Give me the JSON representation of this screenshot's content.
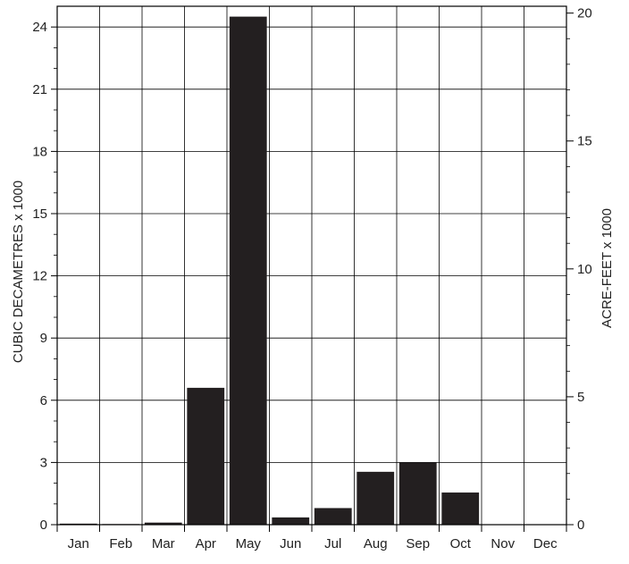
{
  "chart_data": {
    "type": "bar",
    "categories": [
      "Jan",
      "Feb",
      "Mar",
      "Apr",
      "May",
      "Jun",
      "Jul",
      "Aug",
      "Sep",
      "Oct",
      "Nov",
      "Dec"
    ],
    "values": [
      0.05,
      0.03,
      0.1,
      6.6,
      24.5,
      0.35,
      0.8,
      2.55,
      3.0,
      1.55,
      0.02,
      0.02
    ],
    "ylabel": "CUBIC DECAMETRES x 1000",
    "ylim": [
      0,
      25
    ],
    "y_ticks": [
      0,
      3,
      6,
      9,
      12,
      15,
      18,
      21,
      24
    ],
    "y_tick_labels": [
      "0",
      "3",
      "6",
      "9",
      "12",
      "15",
      "18",
      "21",
      "24"
    ],
    "y2label": "ACRE-FEET x 1000",
    "y2_ticks": [
      0,
      5,
      10,
      15,
      20
    ],
    "y2_tick_labels": [
      "0",
      "5",
      "10",
      "15",
      "20"
    ],
    "y2_per_y": 0.8107,
    "grid": true,
    "bar_color": "#231f20",
    "axis_color": "#000000",
    "grid_color": "#000000"
  }
}
